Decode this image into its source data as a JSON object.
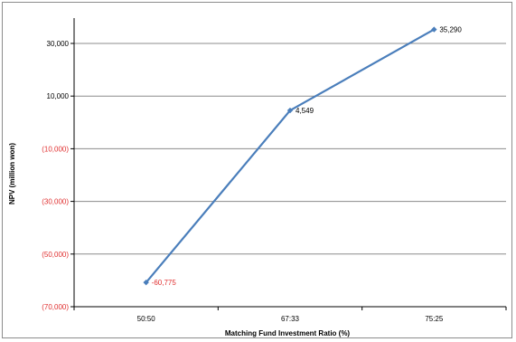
{
  "chart_data": {
    "type": "line",
    "title": "",
    "xlabel": "Matching Fund Investment Ratio (%)",
    "ylabel": "NPV (million won)",
    "categories": [
      "50:50",
      "67:33",
      "75:25"
    ],
    "series": [
      {
        "values": [
          -60775,
          4549,
          35290
        ]
      }
    ],
    "data_labels": [
      "-60,775",
      "4,549",
      "35,290"
    ],
    "ylim": [
      -70000,
      40000
    ],
    "yticks": [
      30000,
      10000,
      -10000,
      -30000,
      -50000,
      -70000
    ],
    "ytick_labels": [
      "30,000",
      "10,000",
      "(10,000)",
      "(30,000)",
      "(50,000)",
      "(70,000)"
    ],
    "grid": true,
    "legend": "none",
    "colors": {
      "line": "#4a7ebb",
      "negative_text": "#e03030",
      "grid": "#8c8c8c"
    }
  }
}
